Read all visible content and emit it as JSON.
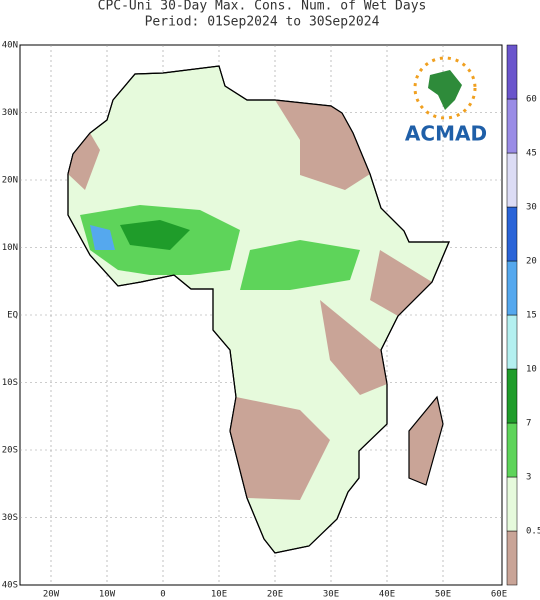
{
  "map": {
    "title": [
      "CPC-Uni 30-Day Max. Cons. Num. of Wet Days",
      "Period: 01Sep2024 to 30Sep2024"
    ],
    "lat_labels": [
      "40N",
      "30N",
      "20N",
      "10N",
      "EQ",
      "10S",
      "20S",
      "30S",
      "40S"
    ],
    "lon_labels": [
      "20W",
      "10W",
      "0",
      "10E",
      "20E",
      "30E",
      "40E",
      "50E",
      "60E"
    ],
    "logo": "ACMAD",
    "colorbar": {
      "labels": [
        "0.5",
        "3",
        "7",
        "10",
        "15",
        "20",
        "30",
        "45",
        "60"
      ],
      "colors": [
        "#c9a497",
        "#e6fadc",
        "#5ed45a",
        "#1f9c2a",
        "#b4f0f0",
        "#55a8ee",
        "#2a64d8",
        "#dcdcf5",
        "#9a8ce6",
        "#6a55cc"
      ]
    }
  }
}
